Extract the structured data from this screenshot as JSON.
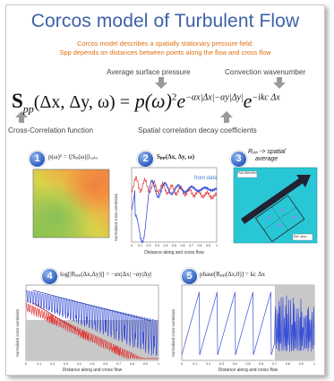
{
  "title": "Corcos model of Turbulent Flow",
  "subtitle": [
    "Corcos model describes a spatially stationary pressure field:",
    "Spp depends on distances between points along the flow and cross flow"
  ],
  "annotations": {
    "avg_pressure": "Average surface pressure",
    "convection": "Convection wavenumber",
    "cross_corr": "Cross-Correlation function",
    "decay": "Spatial correlation decay coefficients"
  },
  "equation": {
    "lhs": "S",
    "lhs_sub": "pp",
    "args": "(Δx, Δy, ω) =",
    "rhs_p": "p(ω)",
    "sq": "2",
    "e": "e",
    "exp1": "−αx|Δx|−αy|Δy|",
    "e2": "e",
    "exp2": "−ikc Δx"
  },
  "panels": [
    {
      "num": "1",
      "equation": "p(ω)² = ⟨|Sₚ(ω)|⟩ₐᵤₜₒ"
    },
    {
      "num": "2",
      "equation": "Sₚₚ(Δx, Δy, ω)",
      "legend": "from data",
      "ylabel": "Normalized cross-correlation",
      "xlabel": "Distance along and cross flow",
      "xticks": [
        "0",
        "0.1",
        "0.2",
        "0.3",
        "0.4",
        "0.5",
        "0.6",
        "0.7",
        "0.8",
        "0.9",
        "1"
      ]
    },
    {
      "num": "3",
      "equation": "Rₚₚ -> spatial",
      "equation2": "average",
      "flow_label": "Flow direction",
      "box_label": "Ref. area"
    },
    {
      "num": "4",
      "equation": "log[|Rₚₚ(Δx,Δy)|] = −αx|Δx| −αy|Δy|",
      "ylabel": "Normalized cross-correlation",
      "xlabel": "Distance along and cross flow",
      "xticks": [
        "0",
        "0.1",
        "0.2",
        "0.3",
        "0.4",
        "0.5",
        "0.6",
        "0.7",
        "0.8",
        "0.9",
        "1"
      ]
    },
    {
      "num": "5",
      "equation": "phase[Rₚₚ(Δx,0)] = kc Δx",
      "ylabel": "Normalized cross-correlation",
      "xlabel": "Distance along and cross flow",
      "xticks": [
        "0",
        "0.1",
        "0.2",
        "0.3",
        "0.4",
        "0.5",
        "0.6",
        "0.7",
        "0.8",
        "0.9",
        "1"
      ]
    }
  ],
  "colors": {
    "title": "#3d62a7",
    "subtitle": "#e07010",
    "series_blue": "#3a4fd8",
    "series_red": "#e03a3a",
    "panel3_bg": "#29c7d6",
    "shade": "#c8c8c8"
  }
}
